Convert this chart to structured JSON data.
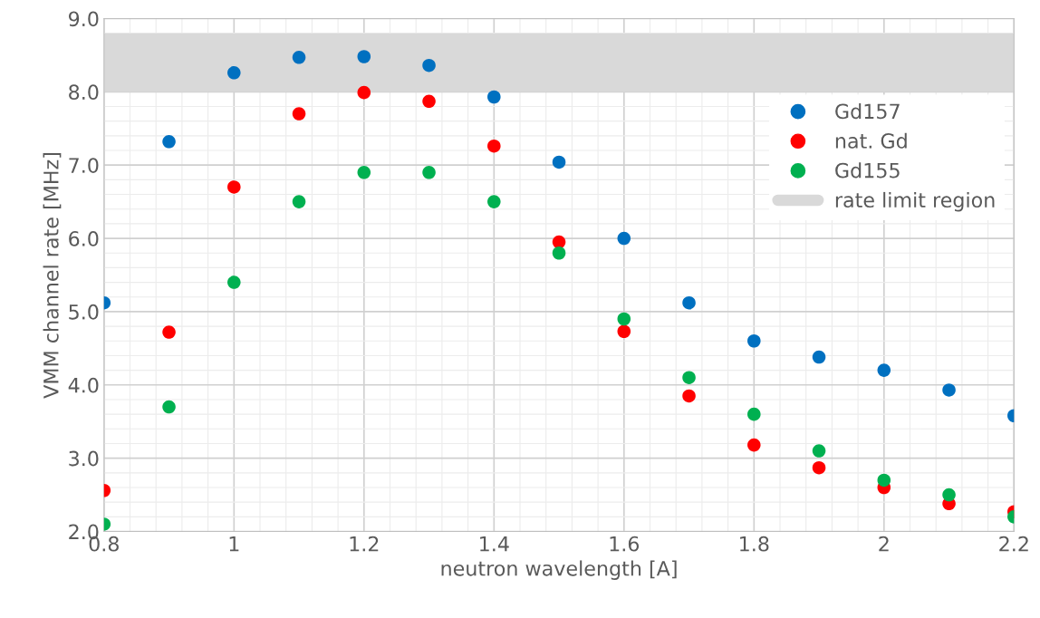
{
  "chart_data": {
    "type": "scatter",
    "xlabel": "neutron wavelength [A]",
    "ylabel": "VMM channel rate [MHz]",
    "x": [
      0.8,
      0.9,
      1.0,
      1.1,
      1.2,
      1.3,
      1.4,
      1.5,
      1.6,
      1.7,
      1.8,
      1.9,
      2.0,
      2.1,
      2.2
    ],
    "series": [
      {
        "name": "Gd157",
        "color": "#0070c0",
        "values": [
          5.12,
          7.32,
          8.26,
          8.47,
          8.48,
          8.36,
          7.93,
          7.04,
          6.0,
          5.12,
          4.6,
          4.38,
          4.2,
          3.93,
          3.58
        ]
      },
      {
        "name": "nat. Gd",
        "color": "#ff0000",
        "values": [
          2.56,
          4.72,
          6.7,
          7.7,
          7.99,
          7.87,
          7.26,
          5.95,
          4.73,
          3.85,
          3.18,
          2.87,
          2.6,
          2.38,
          2.27
        ]
      },
      {
        "name": "Gd155",
        "color": "#00b050",
        "values": [
          2.1,
          3.7,
          5.4,
          6.5,
          6.9,
          6.9,
          6.5,
          5.8,
          4.9,
          4.1,
          3.6,
          3.1,
          2.7,
          2.5,
          2.2
        ]
      }
    ],
    "bands": [
      {
        "axis": "y",
        "from": 8.0,
        "to": 8.8,
        "label": "rate limit region",
        "color": "#d9d9d9"
      }
    ],
    "xlim": [
      0.8,
      2.2
    ],
    "xticks": [
      0.8,
      1,
      1.2,
      1.4,
      1.6,
      1.8,
      2,
      2.2
    ],
    "ylim": [
      2.0,
      9.0
    ],
    "yticks": [
      {
        "value": 2.0,
        "label": "2.0"
      },
      {
        "value": 3.0,
        "label": "3.0"
      },
      {
        "value": 4.0,
        "label": "4.0"
      },
      {
        "value": 5.0,
        "label": "5.0"
      },
      {
        "value": 6.0,
        "label": "6.0"
      },
      {
        "value": 7.0,
        "label": "7.0"
      },
      {
        "value": 8.0,
        "label": "8.0"
      },
      {
        "value": 9.0,
        "label": "9.0"
      }
    ],
    "grid": true,
    "legend": "top right",
    "marker": "circle"
  }
}
